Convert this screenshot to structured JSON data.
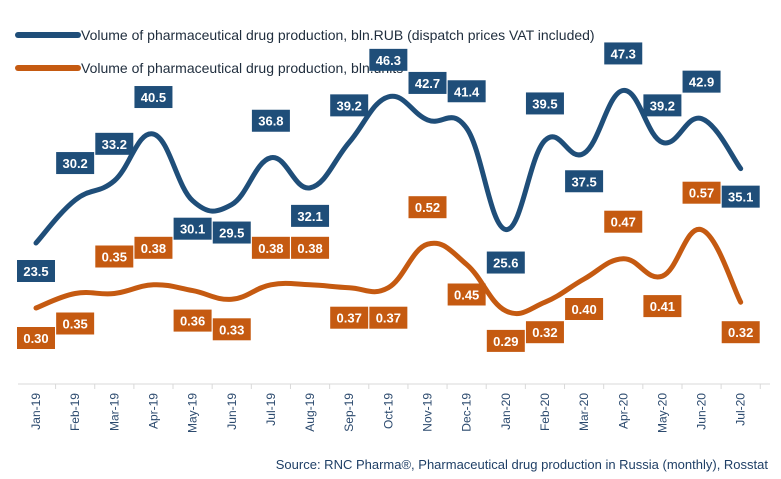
{
  "chart_data": {
    "type": "line",
    "categories": [
      "Jan-19",
      "Feb-19",
      "Mar-19",
      "Apr-19",
      "May-19",
      "Jun-19",
      "Jul-19",
      "Aug-19",
      "Sep-19",
      "Oct-19",
      "Nov-19",
      "Dec-19",
      "Jan-20",
      "Feb-20",
      "Mar-20",
      "Apr-20",
      "May-20",
      "Jun-20",
      "Jul-20"
    ],
    "series": [
      {
        "name": "Volume of pharmaceutical drug production, bln.RUB (dispatch prices VAT included)",
        "color": "#1f4e79",
        "values": [
          23.5,
          30.2,
          33.2,
          40.5,
          30.1,
          29.5,
          36.8,
          32.1,
          39.2,
          46.3,
          42.7,
          41.4,
          25.6,
          39.5,
          37.5,
          47.3,
          39.2,
          42.9,
          35.1
        ],
        "labels": [
          "23.5",
          "30.2",
          "33.2",
          "40.5",
          "30.1",
          "29.5",
          "36.8",
          "32.1",
          "39.2",
          "46.3",
          "42.7",
          "41.4",
          "25.6",
          "39.5",
          "37.5",
          "47.3",
          "39.2",
          "42.9",
          "35.1"
        ]
      },
      {
        "name": "Volume of pharmaceutical drug production, bln.units",
        "color": "#c55a11",
        "values": [
          0.3,
          0.35,
          0.35,
          0.38,
          0.36,
          0.33,
          0.38,
          0.38,
          0.37,
          0.37,
          0.52,
          0.45,
          0.29,
          0.32,
          0.4,
          0.47,
          0.41,
          0.57,
          0.32
        ],
        "labels": [
          "0.30",
          "0.35",
          "0.35",
          "0.38",
          "0.36",
          "0.33",
          "0.38",
          "0.38",
          "0.37",
          "0.37",
          "0.52",
          "0.45",
          "0.29",
          "0.32",
          "0.40",
          "0.47",
          "0.41",
          "0.57",
          "0.32"
        ]
      }
    ],
    "legend_position": "top-left",
    "grid": false,
    "source": "Source: RNC Pharma®,  Pharmaceutical drug production in Russia (monthly), Rosstat"
  }
}
